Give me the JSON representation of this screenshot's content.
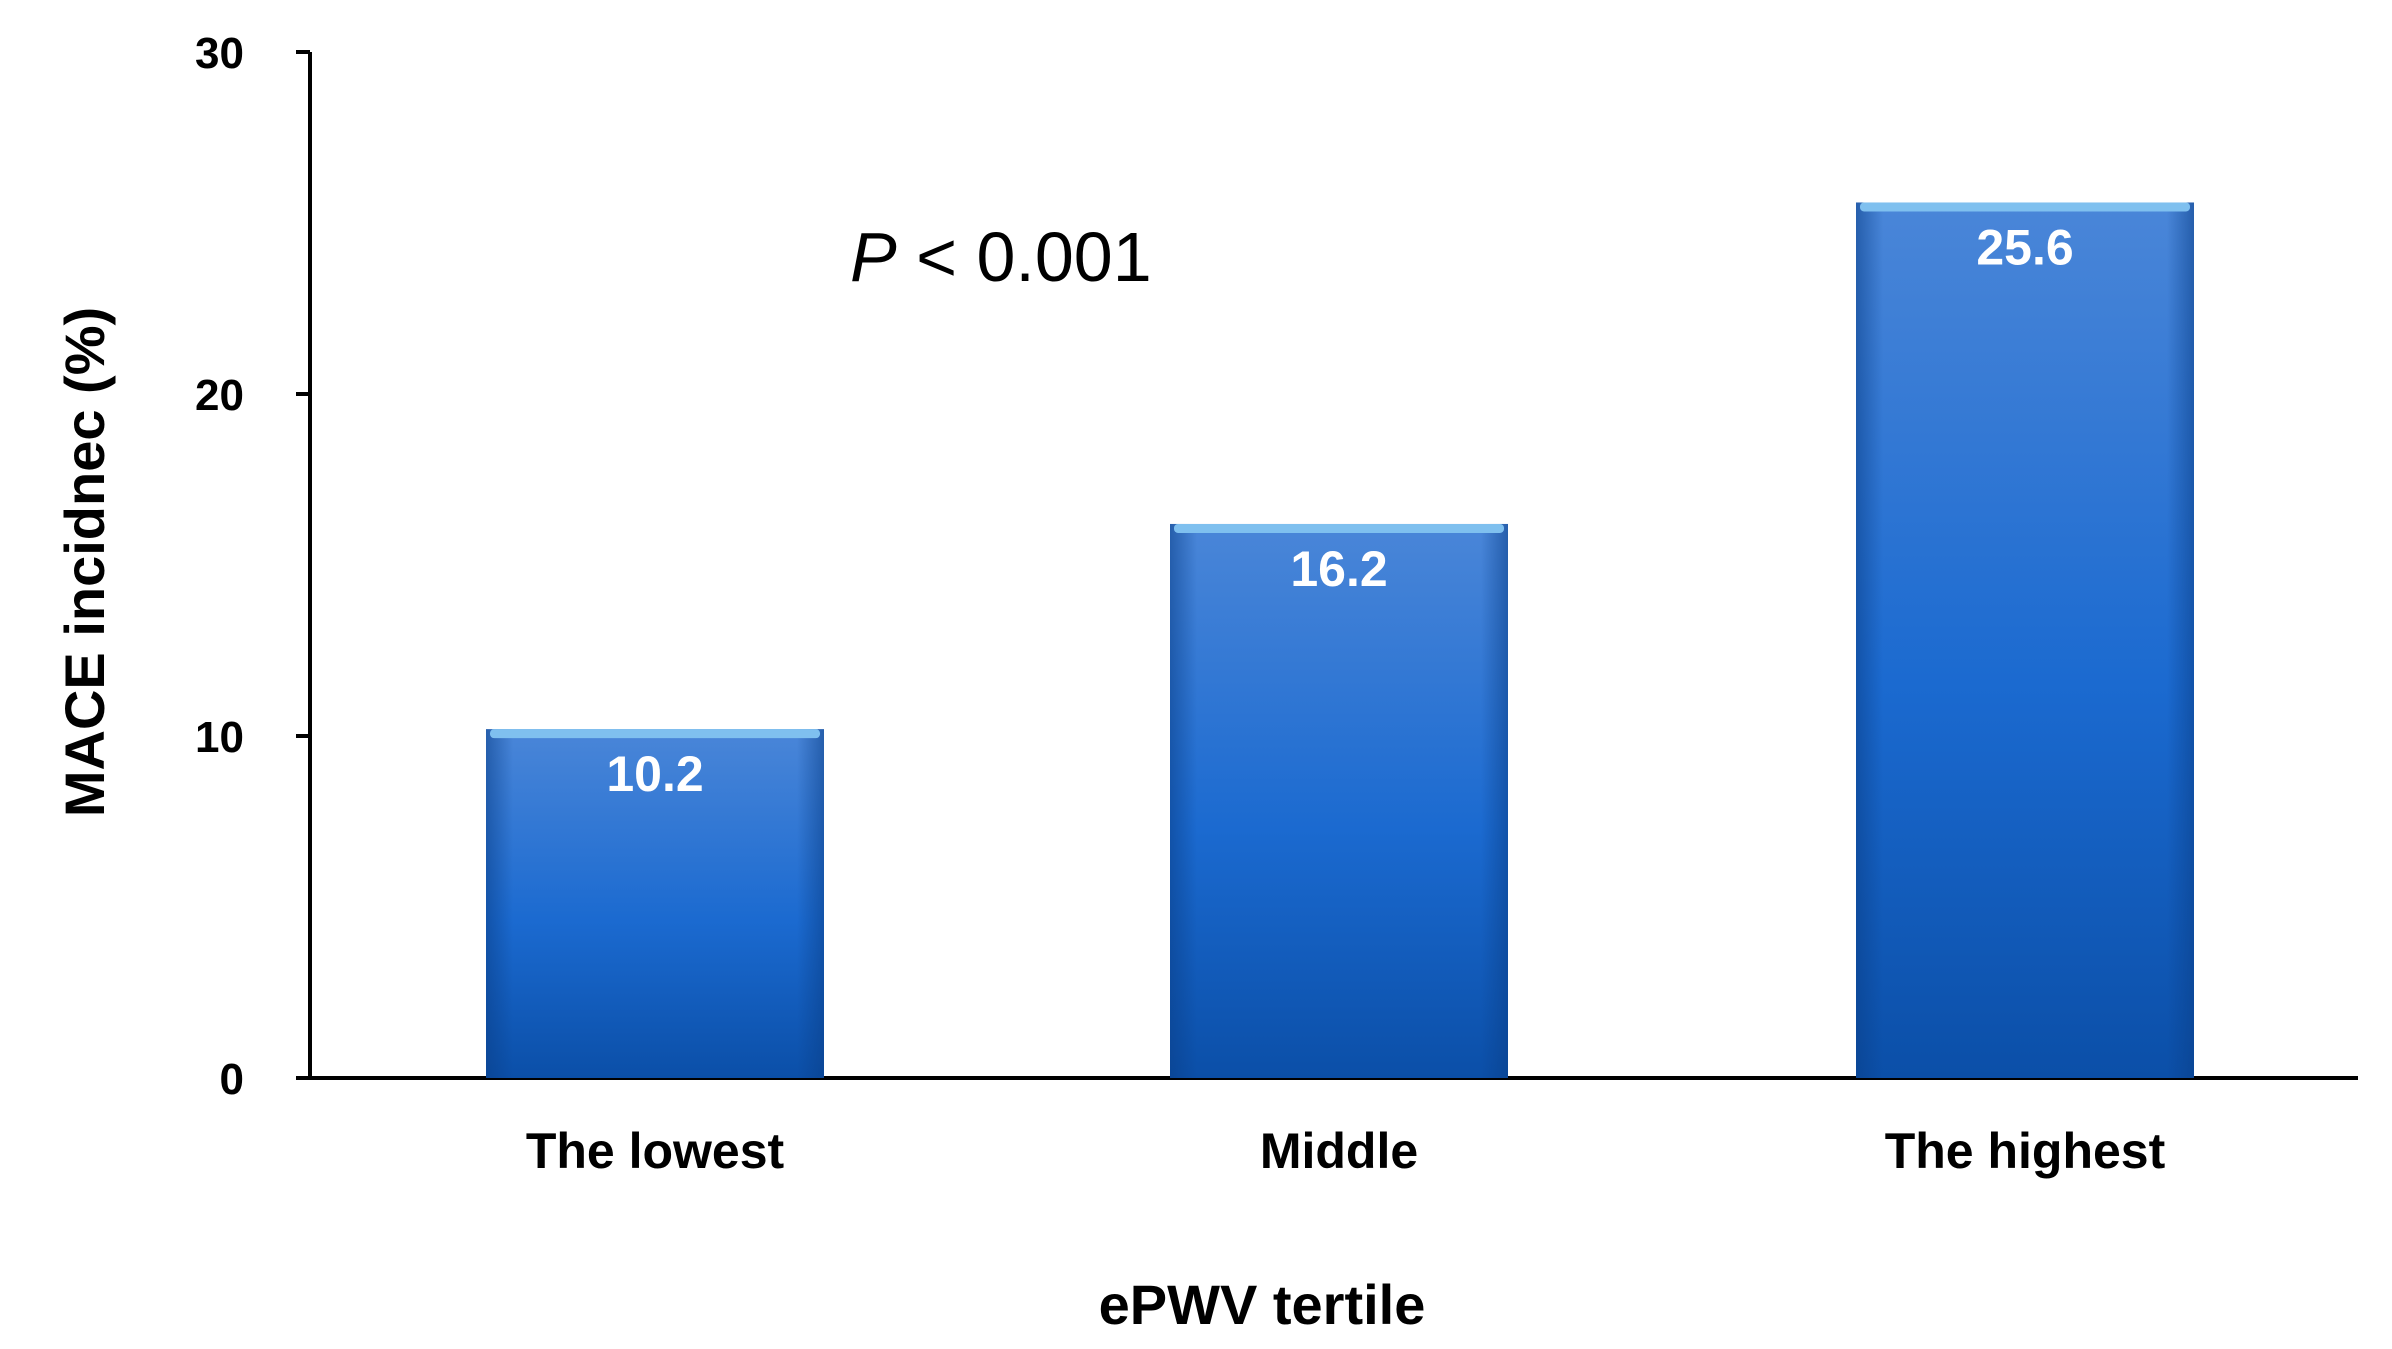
{
  "chart_data": {
    "type": "bar",
    "categories": [
      "The lowest",
      "Middle",
      "The highest"
    ],
    "values": [
      10.2,
      16.2,
      25.6
    ],
    "data_labels": [
      "10.2",
      "16.2",
      "25.6"
    ],
    "xlabel": "ePWV tertile",
    "ylabel": "MACE incidnec (%)",
    "ylim": [
      0,
      30
    ],
    "yticks": [
      0,
      10,
      20,
      30
    ],
    "ytick_labels": [
      "0",
      "10",
      "20",
      "30"
    ],
    "annotation": {
      "italic_part": "P",
      "rest": " < 0.001"
    },
    "grid": false,
    "legend": "none",
    "colors": {
      "bar_top": "#4a86d8",
      "bar_mid": "#1b6ad0",
      "bar_bottom": "#0b4fa8",
      "bar_cap": "#7fc0ef"
    }
  }
}
